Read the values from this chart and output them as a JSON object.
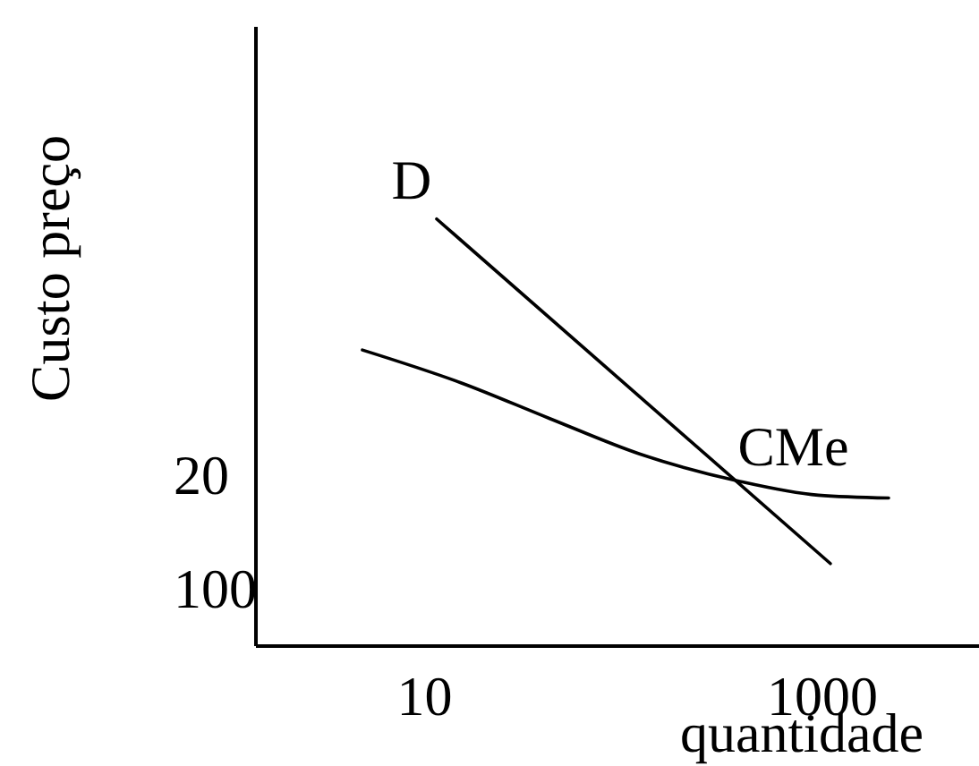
{
  "chart_data": {
    "type": "line",
    "xlabel": "quantidade",
    "ylabel": "Custo preço",
    "xlim": [
      -410,
      1390
    ],
    "xticks": [
      10,
      1000
    ],
    "ylim": [
      140,
      -295
    ],
    "yticks": [
      20,
      100
    ],
    "series": [
      {
        "name": "D",
        "color": "#000000",
        "x": [
          40,
          1020
        ],
        "values": [
          -160,
          82
        ]
      },
      {
        "name": "CMe",
        "color": "#000000",
        "x": [
          -145,
          100,
          320,
          545,
          790,
          990,
          1165
        ],
        "values": [
          -68,
          -45,
          -20,
          5,
          24,
          34,
          36
        ]
      }
    ]
  }
}
